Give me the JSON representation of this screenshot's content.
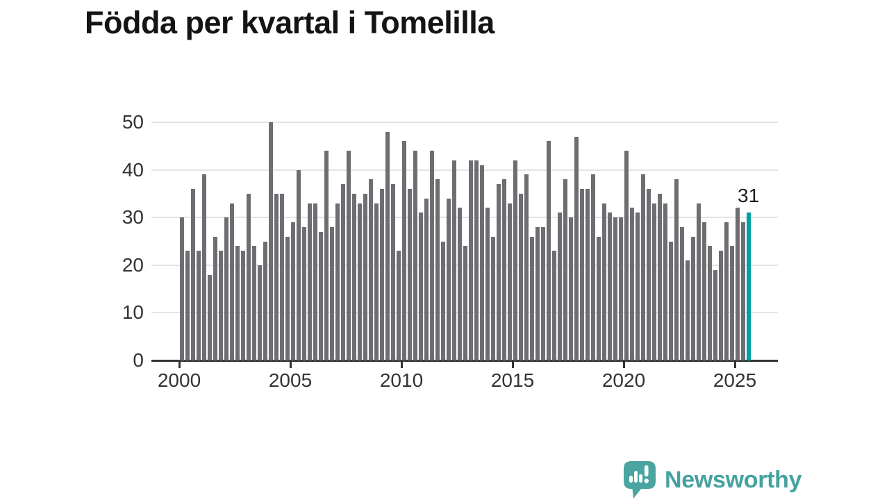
{
  "title": "Födda per kvartal i Tomelilla",
  "annotation": {
    "label": "31"
  },
  "branding": {
    "name": "Newsworthy",
    "icon": "newsworthy-logo-icon"
  },
  "colors": {
    "bar": "#6e6e72",
    "highlight": "#00a0a0",
    "brand": "#45a29e",
    "grid": "#e4e4e4",
    "axis": "#333333",
    "tick_text": "#333333",
    "title_text": "#141414"
  },
  "chart_data": {
    "type": "bar",
    "title": "Födda per kvartal i Tomelilla",
    "frequency": "quarterly",
    "x_start": {
      "year": 2000,
      "quarter": 1
    },
    "x_end": {
      "year": 2025,
      "quarter": 3
    },
    "values": [
      30,
      23,
      36,
      23,
      39,
      18,
      26,
      23,
      30,
      33,
      24,
      23,
      35,
      24,
      20,
      25,
      50,
      35,
      35,
      26,
      29,
      40,
      28,
      33,
      33,
      27,
      44,
      28,
      33,
      37,
      44,
      35,
      33,
      35,
      38,
      33,
      36,
      48,
      37,
      23,
      46,
      36,
      44,
      31,
      34,
      44,
      38,
      25,
      34,
      42,
      32,
      24,
      42,
      42,
      41,
      32,
      26,
      37,
      38,
      33,
      42,
      35,
      39,
      26,
      28,
      28,
      46,
      23,
      31,
      38,
      30,
      47,
      36,
      36,
      39,
      26,
      33,
      31,
      30,
      30,
      44,
      32,
      31,
      39,
      36,
      33,
      35,
      33,
      25,
      38,
      28,
      21,
      26,
      33,
      29,
      24,
      19,
      23,
      29,
      24,
      32,
      29,
      31
    ],
    "highlight_last_bar": true,
    "last_bar_value": 31,
    "ylabel": "",
    "xlabel": "",
    "ylim": [
      0,
      50
    ],
    "yticks": [
      0,
      10,
      20,
      30,
      40,
      50
    ],
    "xticks": [
      2000,
      2005,
      2010,
      2015,
      2020,
      2025
    ],
    "grid": "horizontal",
    "legend": "none"
  }
}
